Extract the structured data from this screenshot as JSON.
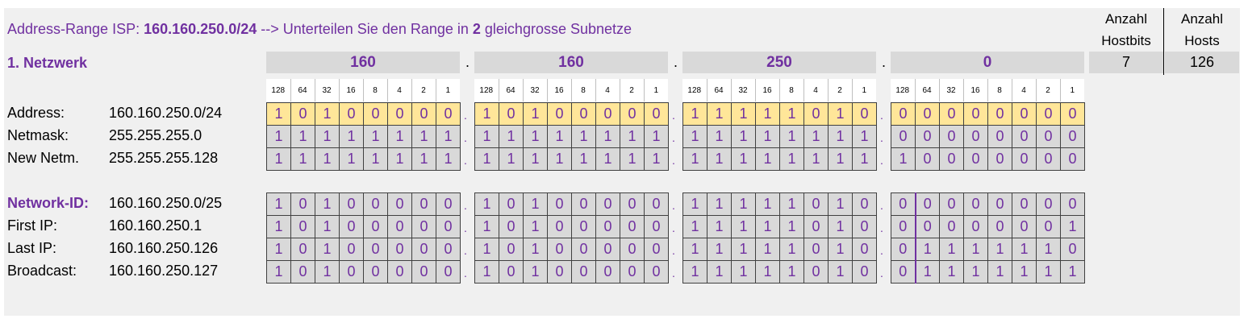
{
  "header": {
    "title_prefix": "Address-Range ISP: ",
    "title_range": "160.160.250.0/24",
    "title_mid": "  --> Unterteilen Sie den Range in ",
    "title_count": "2",
    "title_suffix": " gleichgrosse Subnetze",
    "col_hostbits_label1": "Anzahl",
    "col_hostbits_label2": "Hostbits",
    "col_hosts_label1": "Anzahl",
    "col_hosts_label2": "Hosts",
    "hostbits_value": "7",
    "hosts_value": "126"
  },
  "network_label": "1. Netzwerk",
  "octets": [
    "160",
    "160",
    "250",
    "0"
  ],
  "separator": ".",
  "bit_weights": [
    "128",
    "64",
    "32",
    "16",
    "8",
    "4",
    "2",
    "1"
  ],
  "rows": [
    {
      "label": "Address:",
      "value": "160.160.250.0/24",
      "bits": [
        "10100000",
        "10100000",
        "11111010",
        "00000000"
      ],
      "highlight": true
    },
    {
      "label": "Netmask:",
      "value": "255.255.255.0",
      "bits": [
        "11111111",
        "11111111",
        "11111111",
        "00000000"
      ]
    },
    {
      "label": "New Netm.",
      "value": "255.255.255.128",
      "bits": [
        "11111111",
        "11111111",
        "11111111",
        "10000000"
      ]
    },
    {
      "label": "Network-ID:",
      "value": "160.160.250.0/25",
      "bits": [
        "10100000",
        "10100000",
        "11111010",
        "00000000"
      ],
      "emph": true
    },
    {
      "label": "First IP:",
      "value": "160.160.250.1",
      "bits": [
        "10100000",
        "10100000",
        "11111010",
        "00000001"
      ]
    },
    {
      "label": "Last IP:",
      "value": "160.160.250.126",
      "bits": [
        "10100000",
        "10100000",
        "11111010",
        "01111110"
      ]
    },
    {
      "label": "Broadcast:",
      "value": "160.160.250.127",
      "bits": [
        "10100000",
        "10100000",
        "11111010",
        "01111111"
      ]
    }
  ]
}
